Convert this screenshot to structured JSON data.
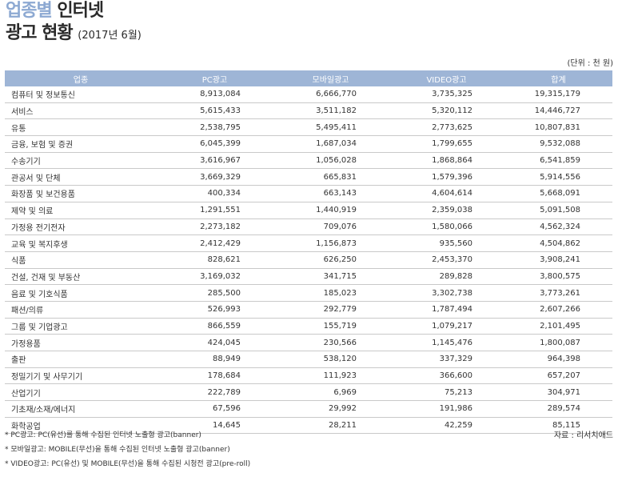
{
  "title": {
    "line1_accent": "업종별",
    "line1_main": "인터넷",
    "line2_main": "광고 현황",
    "line2_date": "(2017년 6월)"
  },
  "unit": "(단위 : 천 원)",
  "table": {
    "headers": [
      "업종",
      "PC광고",
      "모바일광고",
      "VIDEO광고",
      "합계"
    ],
    "rows": [
      [
        "컴퓨터 및 정보통신",
        "8,913,084",
        "6,666,770",
        "3,735,325",
        "19,315,179"
      ],
      [
        "서비스",
        "5,615,433",
        "3,511,182",
        "5,320,112",
        "14,446,727"
      ],
      [
        "유통",
        "2,538,795",
        "5,495,411",
        "2,773,625",
        "10,807,831"
      ],
      [
        "금융, 보험 및 증권",
        "6,045,399",
        "1,687,034",
        "1,799,655",
        "9,532,088"
      ],
      [
        "수송기기",
        "3,616,967",
        "1,056,028",
        "1,868,864",
        "6,541,859"
      ],
      [
        "관공서 및 단체",
        "3,669,329",
        "665,831",
        "1,579,396",
        "5,914,556"
      ],
      [
        "화장품 및 보건용품",
        "400,334",
        "663,143",
        "4,604,614",
        "5,668,091"
      ],
      [
        "제약 및 의료",
        "1,291,551",
        "1,440,919",
        "2,359,038",
        "5,091,508"
      ],
      [
        "가정용 전기전자",
        "2,273,182",
        "709,076",
        "1,580,066",
        "4,562,324"
      ],
      [
        "교육 및 복지후생",
        "2,412,429",
        "1,156,873",
        "935,560",
        "4,504,862"
      ],
      [
        "식품",
        "828,621",
        "626,250",
        "2,453,370",
        "3,908,241"
      ],
      [
        "건설, 건재 및 부동산",
        "3,169,032",
        "341,715",
        "289,828",
        "3,800,575"
      ],
      [
        "음료 및 기호식품",
        "285,500",
        "185,023",
        "3,302,738",
        "3,773,261"
      ],
      [
        "패션/의류",
        "526,993",
        "292,779",
        "1,787,494",
        "2,607,266"
      ],
      [
        "그룹 및 기업광고",
        "866,559",
        "155,719",
        "1,079,217",
        "2,101,495"
      ],
      [
        "가정용품",
        "424,045",
        "230,566",
        "1,145,476",
        "1,800,087"
      ],
      [
        "출판",
        "88,949",
        "538,120",
        "337,329",
        "964,398"
      ],
      [
        "정밀기기 및 사무기기",
        "178,684",
        "111,923",
        "366,600",
        "657,207"
      ],
      [
        "산업기기",
        "222,789",
        "6,969",
        "75,213",
        "304,971"
      ],
      [
        "기초재/소재/에너지",
        "67,596",
        "29,992",
        "191,986",
        "289,574"
      ],
      [
        "화학공업",
        "14,645",
        "28,211",
        "42,259",
        "85,115"
      ]
    ]
  },
  "notes": [
    "* PC광고: PC(유선)를 통해 수집된 인터넷 노출형 광고(banner)",
    "* 모바일광고: MOBILE(무선)을 통해 수집된 인터넷 노출형 광고(banner)",
    "* VIDEO광고: PC(유선) 및 MOBILE(무선)을 통해 수집된 시청전 광고(pre-roll)"
  ],
  "source": "자료 : 리서치애드"
}
